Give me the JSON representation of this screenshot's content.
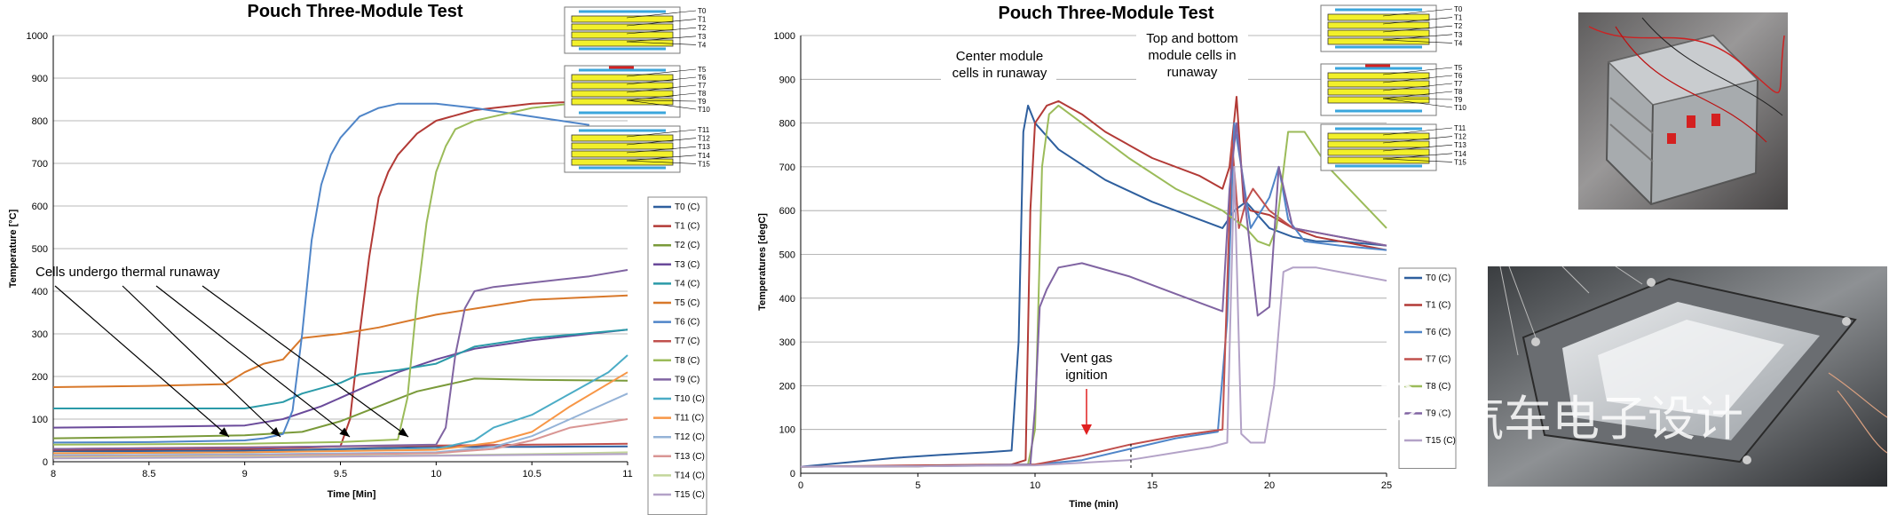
{
  "colors": {
    "T0": "#2e5f9e",
    "T1": "#b23a36",
    "T2": "#7a9a3a",
    "T3": "#6a4a9a",
    "T4": "#2a9aa8",
    "T5": "#d8782a",
    "T6": "#4f85c8",
    "T7": "#c0504d",
    "T8": "#9bbb59",
    "T9": "#8064a2",
    "T10": "#4bacc6",
    "T11": "#f79646",
    "T12": "#95b3d7",
    "T13": "#d99694",
    "T14": "#c3d69b",
    "T15": "#b3a2c7"
  },
  "module_labels": [
    "T0",
    "T1",
    "T2",
    "T3",
    "T4",
    "T5",
    "T6",
    "T7",
    "T8",
    "T9",
    "T10",
    "T11",
    "T12",
    "T13",
    "T14",
    "T15"
  ],
  "chart_data": [
    {
      "type": "line",
      "title": "Pouch Three-Module Test",
      "xlabel": "Time [Min]",
      "ylabel": "Temperature [°C]",
      "xlim": [
        8,
        11
      ],
      "ylim": [
        0,
        1000
      ],
      "xticks": [
        "8",
        "8.5",
        "9",
        "9.5",
        "10",
        "10.5",
        "11"
      ],
      "yticks": [
        "0",
        "100",
        "200",
        "300",
        "400",
        "500",
        "600",
        "700",
        "800",
        "900",
        "1000"
      ],
      "grid": true,
      "legend_position": "right",
      "annotation": "Cells undergo thermal runaway",
      "series": [
        {
          "name": "T0 (C)",
          "key": "T0",
          "x": [
            8,
            8.5,
            9,
            9.2,
            9.3,
            9.4,
            9.5,
            9.6,
            9.7,
            9.8,
            9.9,
            10,
            10.5,
            11
          ],
          "y": [
            25,
            25,
            26,
            27,
            28,
            29,
            30,
            31,
            32,
            33,
            34,
            35,
            35,
            36
          ]
        },
        {
          "name": "T1 (C)",
          "key": "T1",
          "x": [
            8,
            9,
            9.3,
            9.5,
            9.55,
            9.6,
            9.65,
            9.7,
            9.75,
            9.8,
            9.9,
            10,
            10.2,
            10.5,
            11
          ],
          "y": [
            28,
            30,
            33,
            36,
            100,
            300,
            480,
            620,
            680,
            720,
            770,
            800,
            825,
            840,
            850
          ]
        },
        {
          "name": "T2 (C)",
          "key": "T2",
          "x": [
            8,
            8.5,
            9,
            9.3,
            9.5,
            9.7,
            9.9,
            10,
            10.1,
            10.2,
            10.5,
            11
          ],
          "y": [
            55,
            58,
            62,
            70,
            95,
            130,
            165,
            175,
            185,
            195,
            192,
            190
          ]
        },
        {
          "name": "T3 (C)",
          "key": "T3",
          "x": [
            8,
            8.5,
            9,
            9.2,
            9.4,
            9.6,
            9.8,
            10,
            10.2,
            10.5,
            11
          ],
          "y": [
            80,
            82,
            85,
            100,
            130,
            170,
            210,
            240,
            265,
            285,
            310
          ]
        },
        {
          "name": "T4 (C)",
          "key": "T4",
          "x": [
            8,
            8.5,
            9,
            9.2,
            9.3,
            9.5,
            9.6,
            9.8,
            10,
            10.2,
            10.5,
            11
          ],
          "y": [
            125,
            125,
            125,
            140,
            160,
            185,
            205,
            215,
            230,
            270,
            290,
            310
          ]
        },
        {
          "name": "T5 (C)",
          "key": "T5",
          "x": [
            8,
            8.5,
            8.9,
            9,
            9.1,
            9.2,
            9.3,
            9.5,
            9.7,
            10,
            10.5,
            11
          ],
          "y": [
            175,
            178,
            182,
            210,
            230,
            240,
            290,
            300,
            315,
            345,
            380,
            390
          ]
        },
        {
          "name": "T6 (C)",
          "key": "T6",
          "x": [
            8,
            8.5,
            9,
            9.1,
            9.2,
            9.25,
            9.3,
            9.35,
            9.4,
            9.45,
            9.5,
            9.6,
            9.7,
            9.8,
            10,
            10.2,
            10.5,
            10.8
          ],
          "y": [
            45,
            46,
            50,
            55,
            65,
            120,
            300,
            520,
            650,
            720,
            760,
            810,
            830,
            840,
            840,
            830,
            810,
            790
          ]
        },
        {
          "name": "T7 (C)",
          "key": "T7",
          "x": [
            8,
            8.5,
            9,
            9.5,
            10,
            10.5,
            11
          ],
          "y": [
            30,
            32,
            34,
            36,
            38,
            40,
            42
          ]
        },
        {
          "name": "T8 (C)",
          "key": "T8",
          "x": [
            8,
            9,
            9.5,
            9.8,
            9.85,
            9.9,
            9.95,
            10,
            10.05,
            10.1,
            10.2,
            10.3,
            10.5,
            10.7
          ],
          "y": [
            40,
            42,
            46,
            52,
            150,
            380,
            560,
            680,
            740,
            780,
            800,
            810,
            830,
            840
          ]
        },
        {
          "name": "T9 (C)",
          "key": "T9",
          "x": [
            8,
            9,
            10,
            10.05,
            10.1,
            10.15,
            10.2,
            10.3,
            10.5,
            10.8,
            11
          ],
          "y": [
            30,
            33,
            40,
            80,
            250,
            360,
            400,
            410,
            420,
            435,
            450
          ]
        },
        {
          "name": "T10 (C)",
          "key": "T10",
          "x": [
            8,
            9,
            10,
            10.2,
            10.3,
            10.5,
            10.7,
            10.9,
            11
          ],
          "y": [
            20,
            22,
            30,
            50,
            80,
            110,
            160,
            210,
            250
          ]
        },
        {
          "name": "T11 (C)",
          "key": "T11",
          "x": [
            8,
            9,
            10,
            10.3,
            10.5,
            10.7,
            11
          ],
          "y": [
            20,
            22,
            28,
            45,
            70,
            130,
            210
          ]
        },
        {
          "name": "T12 (C)",
          "key": "T12",
          "x": [
            8,
            9,
            10,
            10.3,
            10.5,
            10.7,
            11
          ],
          "y": [
            15,
            17,
            22,
            35,
            60,
            100,
            160
          ]
        },
        {
          "name": "T13 (C)",
          "key": "T13",
          "x": [
            8,
            9,
            10,
            10.3,
            10.5,
            10.7,
            11
          ],
          "y": [
            12,
            14,
            20,
            30,
            50,
            80,
            100
          ]
        },
        {
          "name": "T14 (C)",
          "key": "T14",
          "x": [
            8,
            9,
            10,
            10.5,
            11
          ],
          "y": [
            10,
            12,
            15,
            18,
            22
          ]
        },
        {
          "name": "T15 (C)",
          "key": "T15",
          "x": [
            8,
            9,
            10,
            10.5,
            11
          ],
          "y": [
            8,
            10,
            14,
            16,
            18
          ]
        }
      ]
    },
    {
      "type": "line",
      "title": "Pouch Three-Module Test",
      "xlabel": "Time (min)",
      "ylabel": "Temperatures [degC]",
      "xlim": [
        0,
        25
      ],
      "ylim": [
        0,
        1000
      ],
      "xticks": [
        "0",
        "5",
        "10",
        "15",
        "20",
        "25"
      ],
      "yticks": [
        "0",
        "100",
        "200",
        "300",
        "400",
        "500",
        "600",
        "700",
        "800",
        "900",
        "1000"
      ],
      "grid": true,
      "legend_position": "right",
      "annotations": {
        "center": "Center module cells in runaway",
        "center_lines": [
          "Center module",
          "cells in runaway"
        ],
        "topbottom_lines": [
          "Top and bottom",
          "module cells in",
          "runaway"
        ],
        "vent_lines": [
          "Vent gas",
          "ignition"
        ]
      },
      "series": [
        {
          "name": "T0 (C)",
          "key": "T0",
          "x": [
            0,
            2,
            4,
            6,
            8,
            9,
            9.3,
            9.5,
            9.7,
            10,
            11,
            13,
            15,
            17,
            18,
            18.5,
            19,
            20,
            21,
            22,
            23,
            25
          ],
          "y": [
            15,
            25,
            35,
            42,
            48,
            52,
            300,
            780,
            840,
            800,
            740,
            670,
            620,
            580,
            560,
            600,
            620,
            560,
            540,
            530,
            530,
            520
          ]
        },
        {
          "name": "T1 (C)",
          "key": "T1",
          "x": [
            0,
            5,
            9,
            9.6,
            9.8,
            10,
            10.5,
            11,
            12,
            13,
            15,
            17,
            18,
            18.3,
            18.6,
            18.9,
            19.2,
            20,
            21,
            22,
            23,
            25
          ],
          "y": [
            15,
            18,
            20,
            30,
            600,
            800,
            840,
            850,
            820,
            780,
            720,
            680,
            650,
            700,
            860,
            620,
            600,
            590,
            560,
            540,
            530,
            510
          ]
        },
        {
          "name": "T6 (C)",
          "key": "T6",
          "x": [
            0,
            5,
            9,
            10,
            12,
            14,
            16,
            17.8,
            18.2,
            18.5,
            18.8,
            19.2,
            20,
            20.4,
            20.8,
            21.5,
            23,
            25
          ],
          "y": [
            15,
            16,
            18,
            20,
            30,
            55,
            80,
            95,
            350,
            800,
            700,
            560,
            630,
            700,
            580,
            530,
            520,
            510
          ]
        },
        {
          "name": "T7 (C)",
          "key": "T7",
          "x": [
            0,
            5,
            10,
            12,
            14,
            16,
            18,
            18.4,
            18.7,
            19,
            19.3,
            20,
            21,
            22,
            23,
            25
          ],
          "y": [
            15,
            16,
            20,
            40,
            65,
            85,
            100,
            760,
            560,
            620,
            650,
            600,
            560,
            550,
            540,
            520
          ]
        },
        {
          "name": "T8 (C)",
          "key": "T8",
          "x": [
            0,
            5,
            9.7,
            10,
            10.3,
            10.6,
            11,
            12,
            14,
            16,
            18,
            19,
            19.5,
            20,
            20.3,
            20.8,
            21.5,
            22.5,
            25
          ],
          "y": [
            15,
            16,
            20,
            100,
            700,
            820,
            840,
            800,
            720,
            650,
            600,
            560,
            530,
            520,
            560,
            780,
            780,
            700,
            560
          ]
        },
        {
          "name": "T9 (C)",
          "key": "T9",
          "x": [
            0,
            5,
            9.8,
            10,
            10.2,
            10.5,
            11,
            12,
            14,
            16,
            18,
            18.3,
            18.6,
            19,
            19.5,
            20,
            20.4,
            21,
            22,
            25
          ],
          "y": [
            15,
            16,
            20,
            150,
            380,
            420,
            470,
            480,
            450,
            410,
            370,
            650,
            800,
            600,
            360,
            380,
            700,
            560,
            550,
            520
          ]
        },
        {
          "name": "T15 (C)",
          "key": "T15",
          "x": [
            0,
            5,
            10,
            14,
            17.5,
            18.2,
            18.5,
            18.8,
            19.2,
            19.8,
            20.2,
            20.6,
            21,
            22,
            25
          ],
          "y": [
            15,
            16,
            18,
            30,
            60,
            70,
            700,
            90,
            70,
            70,
            200,
            460,
            470,
            470,
            440
          ]
        }
      ]
    }
  ],
  "watermark": "汽车电子设计"
}
